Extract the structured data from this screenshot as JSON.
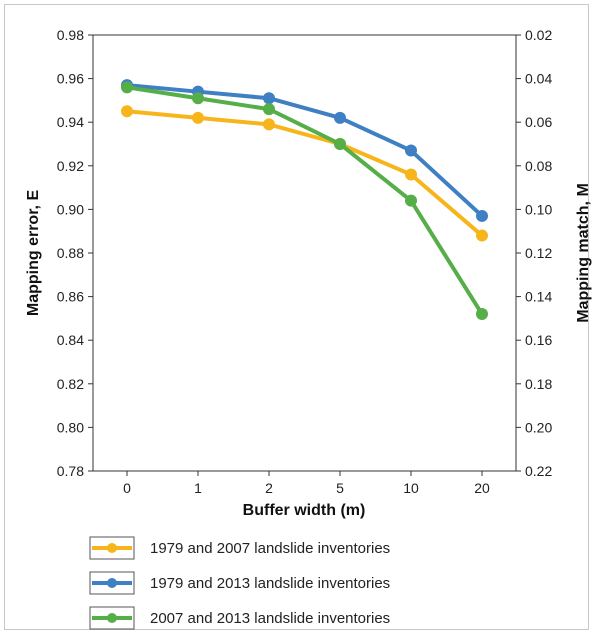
{
  "chart_data": {
    "type": "line",
    "categories": [
      "0",
      "1",
      "2",
      "5",
      "10",
      "20"
    ],
    "xlabel": "Buffer width (m)",
    "ylabel": "Mapping error, E",
    "y2label": "Mapping match, M",
    "ylim": [
      0.78,
      0.98
    ],
    "yticks": [
      "0.78",
      "0.80",
      "0.82",
      "0.84",
      "0.86",
      "0.88",
      "0.90",
      "0.92",
      "0.94",
      "0.96",
      "0.98"
    ],
    "y2lim": [
      0.22,
      0.02
    ],
    "y2ticks": [
      "0.22",
      "0.20",
      "0.18",
      "0.16",
      "0.14",
      "0.12",
      "0.10",
      "0.08",
      "0.06",
      "0.04",
      "0.02"
    ],
    "grid": false,
    "legend_position": "bottom",
    "series": [
      {
        "name": "1979 and 2007 landslide inventories",
        "color": "#f7b51b",
        "values": [
          0.945,
          0.942,
          0.939,
          0.93,
          0.916,
          0.888
        ]
      },
      {
        "name": "1979 and 2013 landslide inventories",
        "color": "#3f7fc3",
        "values": [
          0.957,
          0.954,
          0.951,
          0.942,
          0.927,
          0.897
        ]
      },
      {
        "name": "2007 and 2013 landslide inventories",
        "color": "#56ae48",
        "values": [
          0.956,
          0.951,
          0.946,
          0.93,
          0.904,
          0.852
        ]
      }
    ]
  }
}
